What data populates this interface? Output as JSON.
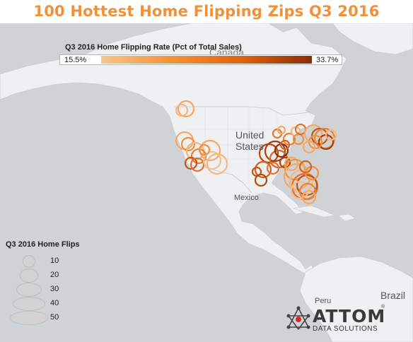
{
  "title": "100 Hottest Home Flipping Zips Q3 2016",
  "map_labels": {
    "canada": "Canada",
    "united_states": "United States",
    "mexico": "Mexico",
    "peru": "Peru",
    "brazil": "Brazil"
  },
  "color_legend": {
    "title": "Q3 2016 Home Flipping Rate (Pct of Total Sales)",
    "min": "15.5%",
    "max": "33.7%",
    "colors": [
      "#f7c58c",
      "#f1923a",
      "#df6310",
      "#8a2e08"
    ]
  },
  "size_legend": {
    "title": "Q3 2016 Home Flips",
    "values": [
      "10",
      "20",
      "30",
      "40",
      "50"
    ]
  },
  "logo": {
    "name": "ATTOM",
    "subtitle": "DATA SOLUTIONS"
  },
  "colors": {
    "title": "#f0913a",
    "ocean": "#cfd3d6",
    "land": "#eef0f1"
  }
}
